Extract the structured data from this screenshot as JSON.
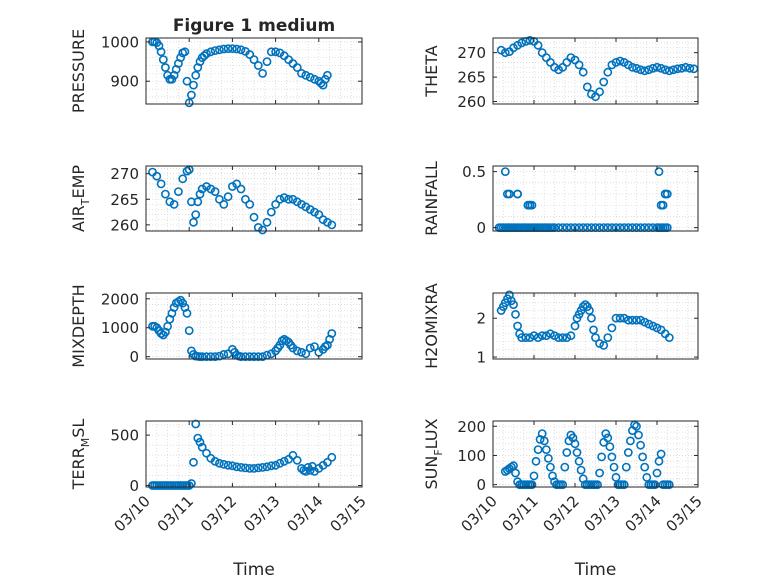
{
  "figure": {
    "title": "Figure 1 medium",
    "marker_color": "#0072BD",
    "xticks": [
      "03/10",
      "03/11",
      "03/12",
      "03/13",
      "03/14",
      "03/15"
    ],
    "xlabel": "Time"
  },
  "chart_data": [
    {
      "type": "scatter",
      "ylabel": "PRESSURE",
      "ylim": [
        842,
        1010
      ],
      "yticks": [
        900,
        1000
      ],
      "grid": true,
      "x": [
        0.15,
        0.2,
        0.25,
        0.3,
        0.35,
        0.4,
        0.45,
        0.5,
        0.55,
        0.6,
        0.65,
        0.7,
        0.75,
        0.8,
        0.85,
        0.9,
        0.95,
        1.0,
        1.05,
        1.1,
        1.15,
        1.2,
        1.25,
        1.3,
        1.35,
        1.4,
        1.5,
        1.6,
        1.7,
        1.8,
        1.9,
        2.0,
        2.1,
        2.2,
        2.3,
        2.4,
        2.5,
        2.6,
        2.7,
        2.8,
        2.9,
        3.0,
        3.1,
        3.2,
        3.3,
        3.4,
        3.5,
        3.6,
        3.7,
        3.8,
        3.9,
        4.0,
        4.05,
        4.1,
        4.15,
        4.2
      ],
      "y": [
        1000,
        1000,
        998,
        990,
        975,
        955,
        935,
        915,
        905,
        905,
        915,
        930,
        945,
        960,
        972,
        975,
        900,
        845,
        865,
        890,
        915,
        935,
        950,
        960,
        965,
        970,
        975,
        978,
        980,
        982,
        983,
        983,
        982,
        980,
        976,
        968,
        955,
        940,
        920,
        950,
        975,
        975,
        972,
        965,
        955,
        945,
        935,
        920,
        915,
        910,
        905,
        900,
        895,
        890,
        905,
        915
      ]
    },
    {
      "type": "scatter",
      "ylabel": "THETA",
      "ylim": [
        259.5,
        273
      ],
      "yticks": [
        260,
        265,
        270
      ],
      "grid": true,
      "x": [
        0.2,
        0.3,
        0.4,
        0.5,
        0.6,
        0.7,
        0.8,
        0.9,
        1.0,
        1.1,
        1.2,
        1.3,
        1.4,
        1.5,
        1.6,
        1.7,
        1.8,
        1.9,
        2.0,
        2.1,
        2.2,
        2.3,
        2.4,
        2.5,
        2.6,
        2.7,
        2.8,
        2.9,
        3.0,
        3.1,
        3.2,
        3.3,
        3.4,
        3.5,
        3.6,
        3.7,
        3.8,
        3.9,
        4.0,
        4.1,
        4.2,
        4.3,
        4.4,
        4.5,
        4.6,
        4.7,
        4.8,
        4.9
      ],
      "y": [
        270.5,
        270,
        270.2,
        271,
        271.5,
        272,
        272.3,
        272.5,
        272.3,
        271.5,
        270,
        269,
        268,
        267,
        266.5,
        267,
        268,
        269,
        268.5,
        267.5,
        266,
        263,
        261.5,
        261,
        262,
        264,
        266,
        267.5,
        268,
        268.3,
        268,
        267.5,
        267,
        266.8,
        266.5,
        266.3,
        266.5,
        266.8,
        267,
        266.8,
        266.5,
        266.3,
        266.5,
        266.7,
        266.8,
        267,
        266.8,
        266.7
      ]
    },
    {
      "type": "scatter",
      "ylabel": "AIR_TEMP",
      "ylim": [
        258.8,
        271.5
      ],
      "yticks": [
        260,
        265,
        270
      ],
      "grid": true,
      "x": [
        0.15,
        0.25,
        0.35,
        0.45,
        0.55,
        0.65,
        0.75,
        0.85,
        0.95,
        1.0,
        1.05,
        1.1,
        1.15,
        1.2,
        1.25,
        1.3,
        1.4,
        1.5,
        1.6,
        1.7,
        1.8,
        1.9,
        2.0,
        2.1,
        2.2,
        2.3,
        2.4,
        2.5,
        2.6,
        2.7,
        2.8,
        2.9,
        3.0,
        3.1,
        3.2,
        3.3,
        3.4,
        3.5,
        3.6,
        3.7,
        3.8,
        3.9,
        4.0,
        4.1,
        4.2,
        4.3
      ],
      "y": [
        270.3,
        269.5,
        268,
        266,
        264.5,
        264,
        266.5,
        269,
        270.5,
        270.8,
        264.5,
        260.5,
        262,
        264.5,
        266,
        267,
        267.5,
        267,
        266.5,
        265,
        264,
        265.5,
        267.5,
        268,
        267,
        265,
        264,
        261.5,
        259.5,
        259,
        260.5,
        262.5,
        264,
        265,
        265.3,
        265,
        265,
        264.5,
        264,
        263.5,
        263,
        262.5,
        262,
        261,
        260.5,
        260
      ]
    },
    {
      "type": "scatter",
      "ylabel": "RAINFALL",
      "ylim": [
        -0.03,
        0.55
      ],
      "yticks": [
        0,
        0.5
      ],
      "grid": true,
      "x": [
        0.15,
        0.2,
        0.25,
        0.3,
        0.35,
        0.4,
        0.45,
        0.5,
        0.55,
        0.6,
        0.65,
        0.7,
        0.75,
        0.8,
        0.85,
        0.9,
        0.95,
        1.0,
        1.05,
        1.1,
        1.15,
        1.2,
        1.25,
        1.3,
        1.35,
        1.4,
        1.45,
        1.5,
        1.6,
        1.7,
        1.8,
        1.9,
        2.0,
        2.1,
        2.2,
        2.3,
        2.4,
        2.5,
        2.6,
        2.7,
        2.8,
        2.9,
        3.0,
        3.1,
        3.2,
        3.3,
        3.4,
        3.5,
        3.6,
        3.7,
        3.8,
        3.9,
        4.0,
        4.05,
        4.1,
        4.15,
        4.2,
        4.25,
        0.3,
        0.35,
        0.4,
        0.6,
        0.6,
        0.85,
        0.9,
        0.9,
        0.95,
        4.05,
        4.1,
        4.15,
        4.2,
        4.2,
        4.25
      ],
      "y": [
        0,
        0,
        0,
        0,
        0,
        0,
        0,
        0,
        0,
        0,
        0,
        0,
        0,
        0,
        0,
        0,
        0,
        0,
        0,
        0,
        0,
        0,
        0,
        0,
        0,
        0,
        0,
        0,
        0,
        0,
        0,
        0,
        0,
        0,
        0,
        0,
        0,
        0,
        0,
        0,
        0,
        0,
        0,
        0,
        0,
        0,
        0,
        0,
        0,
        0,
        0,
        0,
        0,
        0,
        0,
        0,
        0,
        0,
        0.5,
        0.3,
        0.3,
        0.3,
        0.3,
        0.2,
        0.2,
        0.2,
        0.2,
        0.5,
        0.2,
        0.2,
        0.3,
        0.3,
        0.3
      ]
    },
    {
      "type": "scatter",
      "ylabel": "MIXDEPTH",
      "ylim": [
        -80,
        2200
      ],
      "yticks": [
        0,
        1000,
        2000
      ],
      "grid": true,
      "x": [
        0.15,
        0.2,
        0.25,
        0.3,
        0.35,
        0.4,
        0.45,
        0.5,
        0.55,
        0.6,
        0.65,
        0.7,
        0.75,
        0.8,
        0.85,
        0.9,
        0.95,
        1.0,
        1.05,
        1.1,
        1.15,
        1.2,
        1.25,
        1.3,
        1.4,
        1.5,
        1.6,
        1.7,
        1.8,
        1.9,
        2.0,
        2.05,
        2.1,
        2.15,
        2.2,
        2.3,
        2.4,
        2.5,
        2.6,
        2.7,
        2.8,
        2.9,
        3.0,
        3.05,
        3.1,
        3.15,
        3.2,
        3.25,
        3.3,
        3.35,
        3.4,
        3.5,
        3.6,
        3.7,
        3.8,
        3.9,
        4.0,
        4.1,
        4.15,
        4.2,
        4.25,
        4.3
      ],
      "y": [
        1050,
        1050,
        1000,
        900,
        800,
        750,
        850,
        1050,
        1300,
        1500,
        1700,
        1850,
        1900,
        1950,
        1850,
        1700,
        1500,
        900,
        200,
        80,
        20,
        10,
        0,
        0,
        0,
        0,
        0,
        20,
        80,
        100,
        250,
        150,
        50,
        20,
        0,
        0,
        0,
        0,
        0,
        0,
        50,
        100,
        200,
        300,
        400,
        550,
        600,
        550,
        500,
        400,
        300,
        200,
        150,
        100,
        300,
        350,
        150,
        250,
        350,
        400,
        600,
        800
      ]
    },
    {
      "type": "scatter",
      "ylabel": "H2OMIXRA",
      "ylim": [
        0.95,
        2.65
      ],
      "yticks": [
        1,
        2
      ],
      "grid": true,
      "x": [
        0.2,
        0.25,
        0.3,
        0.35,
        0.4,
        0.45,
        0.5,
        0.55,
        0.6,
        0.65,
        0.7,
        0.8,
        0.9,
        1.0,
        1.1,
        1.2,
        1.3,
        1.4,
        1.5,
        1.6,
        1.7,
        1.8,
        1.9,
        2.0,
        2.05,
        2.1,
        2.15,
        2.2,
        2.25,
        2.3,
        2.35,
        2.4,
        2.45,
        2.5,
        2.6,
        2.7,
        2.8,
        2.9,
        3.0,
        3.1,
        3.2,
        3.3,
        3.4,
        3.5,
        3.6,
        3.7,
        3.8,
        3.9,
        4.0,
        4.1,
        4.2,
        4.3
      ],
      "y": [
        2.2,
        2.3,
        2.4,
        2.5,
        2.6,
        2.45,
        2.35,
        2.1,
        1.8,
        1.6,
        1.5,
        1.5,
        1.5,
        1.55,
        1.5,
        1.55,
        1.55,
        1.6,
        1.55,
        1.5,
        1.5,
        1.5,
        1.55,
        1.8,
        2.0,
        2.1,
        2.2,
        2.3,
        2.35,
        2.3,
        2.2,
        2.0,
        1.7,
        1.5,
        1.35,
        1.3,
        1.5,
        1.75,
        2.0,
        2.0,
        2.0,
        1.95,
        1.95,
        1.95,
        1.95,
        1.9,
        1.85,
        1.8,
        1.75,
        1.7,
        1.6,
        1.5
      ]
    },
    {
      "type": "scatter",
      "ylabel": "TERR_MSL",
      "ylim": [
        -15,
        640
      ],
      "yticks": [
        0,
        500
      ],
      "grid": true,
      "x": [
        0.15,
        0.2,
        0.25,
        0.3,
        0.35,
        0.4,
        0.45,
        0.5,
        0.55,
        0.6,
        0.65,
        0.7,
        0.75,
        0.8,
        0.85,
        0.9,
        0.95,
        1.0,
        1.05,
        1.1,
        1.15,
        1.2,
        1.25,
        1.3,
        1.4,
        1.5,
        1.6,
        1.7,
        1.8,
        1.9,
        2.0,
        2.1,
        2.2,
        2.3,
        2.4,
        2.5,
        2.6,
        2.7,
        2.8,
        2.9,
        3.0,
        3.1,
        3.2,
        3.3,
        3.4,
        3.5,
        3.6,
        3.65,
        3.7,
        3.75,
        3.8,
        3.85,
        3.9,
        4.0,
        4.1,
        4.2,
        4.3
      ],
      "y": [
        0,
        0,
        0,
        0,
        0,
        0,
        0,
        0,
        0,
        0,
        0,
        0,
        0,
        0,
        0,
        0,
        0,
        0,
        20,
        230,
        610,
        470,
        430,
        380,
        320,
        270,
        240,
        220,
        210,
        200,
        195,
        185,
        180,
        175,
        170,
        170,
        175,
        180,
        185,
        195,
        200,
        220,
        240,
        260,
        300,
        250,
        170,
        150,
        140,
        180,
        150,
        190,
        140,
        170,
        200,
        230,
        280
      ]
    },
    {
      "type": "scatter",
      "ylabel": "SUN_FLUX",
      "ylim": [
        -8,
        218
      ],
      "yticks": [
        0,
        100,
        200
      ],
      "grid": true,
      "x": [
        0.3,
        0.35,
        0.4,
        0.45,
        0.5,
        0.55,
        0.6,
        0.65,
        0.7,
        0.75,
        0.8,
        0.85,
        0.9,
        0.95,
        1.0,
        1.05,
        1.1,
        1.15,
        1.2,
        1.25,
        1.3,
        1.35,
        1.4,
        1.45,
        1.5,
        1.55,
        1.6,
        1.65,
        1.7,
        1.75,
        1.8,
        1.85,
        1.9,
        1.95,
        2.0,
        2.05,
        2.1,
        2.15,
        2.2,
        2.25,
        2.3,
        2.35,
        2.4,
        2.45,
        2.5,
        2.55,
        2.6,
        2.65,
        2.7,
        2.75,
        2.8,
        2.85,
        2.9,
        2.95,
        3.0,
        3.05,
        3.1,
        3.15,
        3.2,
        3.25,
        3.3,
        3.35,
        3.4,
        3.45,
        3.5,
        3.55,
        3.6,
        3.65,
        3.7,
        3.75,
        3.8,
        3.85,
        3.9,
        3.95,
        4.0,
        4.05,
        4.1,
        4.15,
        4.2,
        4.25,
        4.3
      ],
      "y": [
        45,
        50,
        55,
        60,
        65,
        40,
        10,
        0,
        0,
        0,
        0,
        0,
        0,
        0,
        30,
        80,
        120,
        155,
        175,
        150,
        120,
        90,
        60,
        30,
        10,
        0,
        0,
        0,
        0,
        60,
        110,
        150,
        170,
        160,
        140,
        110,
        80,
        50,
        20,
        0,
        0,
        0,
        0,
        0,
        0,
        0,
        40,
        95,
        145,
        175,
        160,
        130,
        95,
        60,
        25,
        0,
        0,
        0,
        0,
        60,
        110,
        150,
        185,
        205,
        200,
        170,
        135,
        95,
        60,
        25,
        0,
        0,
        0,
        0,
        40,
        80,
        105,
        0,
        0,
        0,
        0
      ]
    }
  ]
}
